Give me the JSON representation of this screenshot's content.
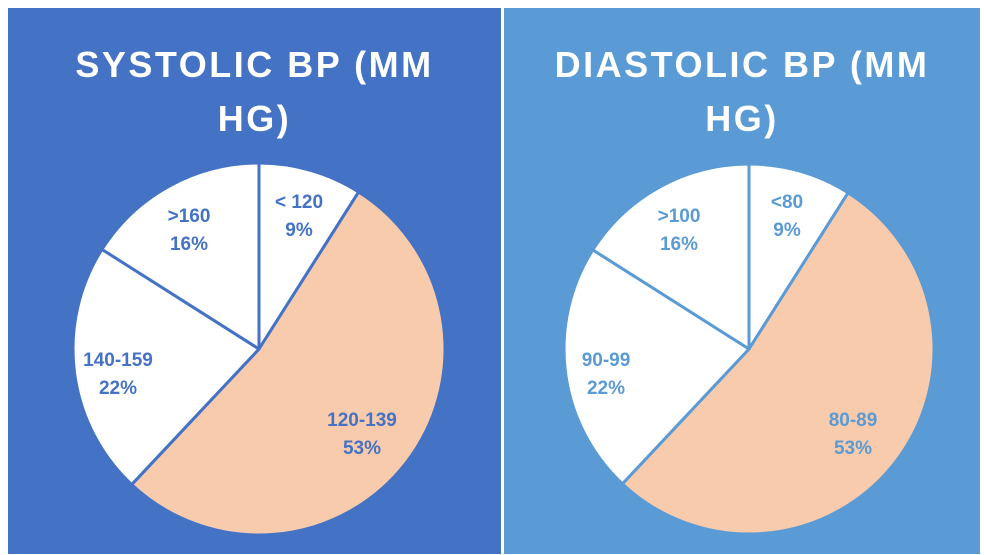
{
  "chart_data": [
    {
      "type": "pie",
      "title": "SYSTOLIC BP (MM HG)",
      "categories": [
        "< 120",
        "120-139",
        "140-159",
        ">160"
      ],
      "values": [
        9,
        53,
        22,
        16
      ],
      "value_labels": [
        "9%",
        "53%",
        "22%",
        "16%"
      ],
      "background_color": "#4472C4",
      "label_color": "#4472C4",
      "slice_colors": [
        "#FFFFFF",
        "#F8CBAD",
        "#FFFFFF",
        "#FFFFFF"
      ],
      "legend": "none"
    },
    {
      "type": "pie",
      "title": "DIASTOLIC BP (MM HG)",
      "categories": [
        "<80",
        "80-89",
        "90-99",
        ">100"
      ],
      "values": [
        9,
        53,
        22,
        16
      ],
      "value_labels": [
        "9%",
        "53%",
        "22%",
        "16%"
      ],
      "background_color": "#5B9BD5",
      "label_color": "#5B9BD5",
      "slice_colors": [
        "#FFFFFF",
        "#F8CBAD",
        "#FFFFFF",
        "#FFFFFF"
      ],
      "legend": "none"
    }
  ]
}
